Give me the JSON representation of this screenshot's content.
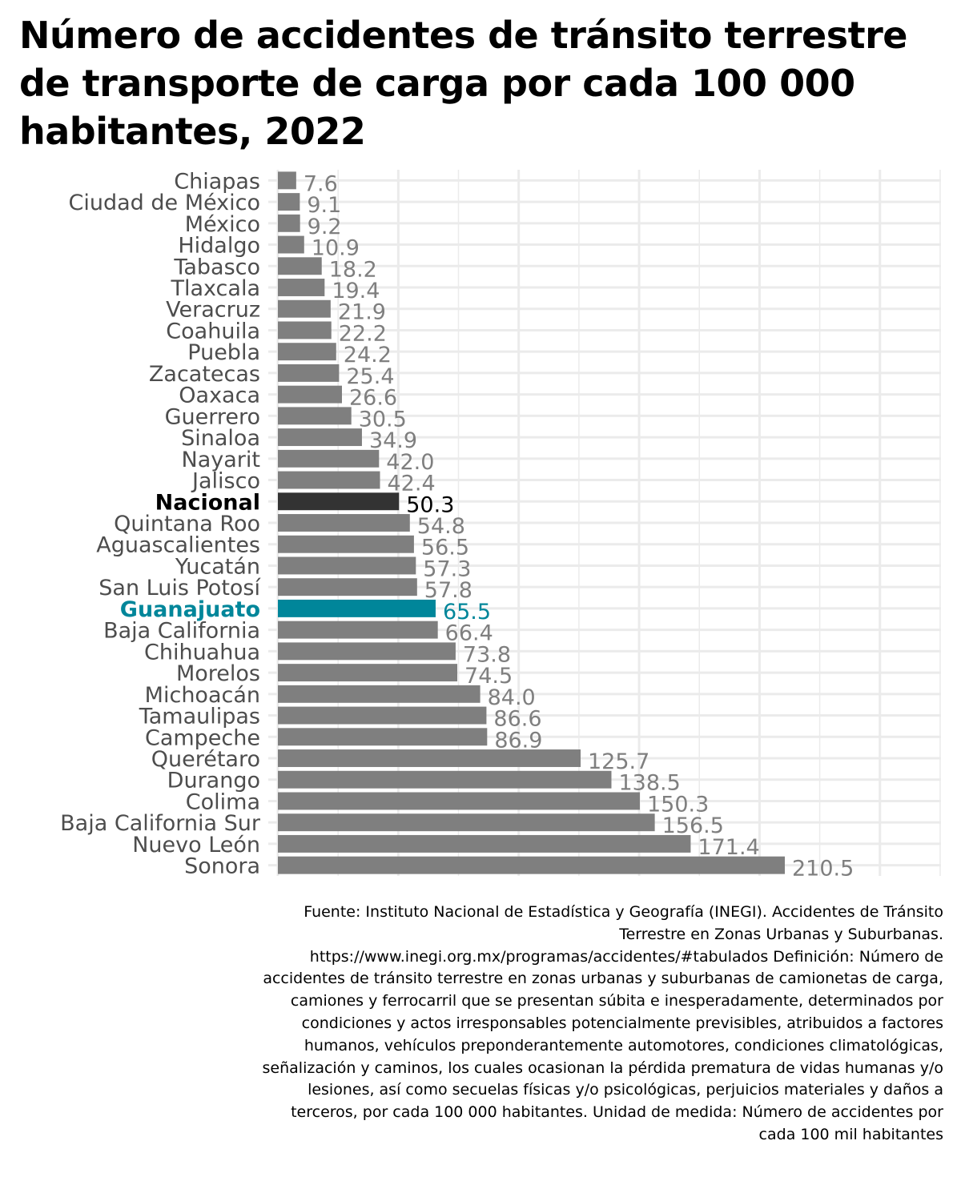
{
  "chart_data": {
    "type": "bar",
    "orientation": "horizontal",
    "title": "Número de accidentes de tránsito terrestre de transporte de carga por cada 100 000 habitantes, 2022",
    "xlim": [
      0,
      275
    ],
    "grid": true,
    "categories": [
      "Chiapas",
      "Ciudad de México",
      "México",
      "Hidalgo",
      "Tabasco",
      "Tlaxcala",
      "Veracruz",
      "Coahuila",
      "Puebla",
      "Zacatecas",
      "Oaxaca",
      "Guerrero",
      "Sinaloa",
      "Nayarit",
      "Jalisco",
      "Nacional",
      "Quintana Roo",
      "Aguascalientes",
      "Yucatán",
      "San Luis Potosí",
      "Guanajuato",
      "Baja California",
      "Chihuahua",
      "Morelos",
      "Michoacán",
      "Tamaulipas",
      "Campeche",
      "Querétaro",
      "Durango",
      "Colima",
      "Baja California Sur",
      "Nuevo León",
      "Sonora"
    ],
    "values": [
      7.6,
      9.1,
      9.2,
      10.9,
      18.2,
      19.4,
      21.9,
      22.2,
      24.2,
      25.4,
      26.6,
      30.5,
      34.9,
      42.0,
      42.4,
      50.3,
      54.8,
      56.5,
      57.3,
      57.8,
      65.5,
      66.4,
      73.8,
      74.5,
      84.0,
      86.6,
      86.9,
      125.7,
      138.5,
      150.3,
      156.5,
      171.4,
      210.5
    ],
    "value_labels": [
      "7.6",
      "9.1",
      "9.2",
      "10.9",
      "18.2",
      "19.4",
      "21.9",
      "22.2",
      "24.2",
      "25.4",
      "26.6",
      "30.5",
      "34.9",
      "42.0",
      "42.4",
      "50.3",
      "54.8",
      "56.5",
      "57.3",
      "57.8",
      "65.5",
      "66.4",
      "73.8",
      "74.5",
      "84.0",
      "86.6",
      "86.9",
      "125.7",
      "138.5",
      "150.3",
      "156.5",
      "171.4",
      "210.5"
    ],
    "highlight": {
      "Nacional": "#333333",
      "Guanajuato": "#00869a"
    },
    "bold_categories": [
      "Nacional",
      "Guanajuato"
    ],
    "colors": {
      "default_bar": "#7f7f7f",
      "default_label": "#7f7f7f",
      "category_text": "#4d4d4d",
      "nacional_text": "#000000",
      "guanajuato": "#00869a",
      "grid": "#ebebeb"
    }
  },
  "caption": {
    "source": "Fuente: Instituto Nacional de Estadística y Geografía (INEGI). Accidentes de Tránsito Terrestre en Zonas Urbanas y Suburbanas. https://www.inegi.org.mx/programas/accidentes/#tabulados Definición: Número de accidentes de tránsito terrestre en zonas urbanas y suburbanas de camionetas de carga, camiones y ferrocarril que se presentan súbita e inesperadamente, determinados por condiciones y actos irresponsables potencialmente previsibles, atribuidos a factores humanos, vehículos preponderantemente automotores, condiciones climatológicas, señalización y caminos, los cuales ocasionan la pérdida prematura de vidas humanas y/o lesiones, así como secuelas físicas y/o psicológicas, perjuicios materiales y daños a terceros, por cada 100 000 habitantes. Unidad de medida: Número de accidentes por cada 100 mil habitantes"
  }
}
